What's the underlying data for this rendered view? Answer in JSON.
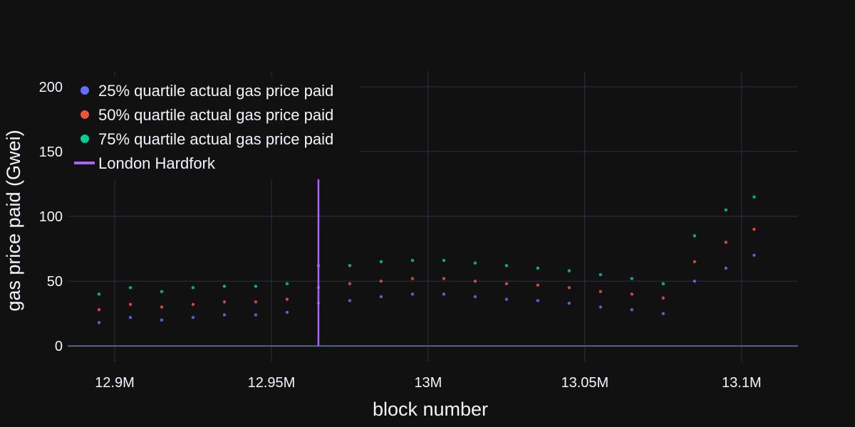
{
  "chart_data": {
    "type": "scatter",
    "title": "",
    "xlabel": "block number",
    "ylabel": "gas price paid (Gwei)",
    "xlim": [
      12885000,
      13118000
    ],
    "ylim": [
      -12,
      212
    ],
    "x_ticks": [
      {
        "value": 12900000,
        "label": "12.9M"
      },
      {
        "value": 12950000,
        "label": "12.95M"
      },
      {
        "value": 13000000,
        "label": "13M"
      },
      {
        "value": 13050000,
        "label": "13.05M"
      },
      {
        "value": 13100000,
        "label": "13.1M"
      }
    ],
    "y_ticks": [
      {
        "value": 0,
        "label": "0"
      },
      {
        "value": 50,
        "label": "50"
      },
      {
        "value": 100,
        "label": "100"
      },
      {
        "value": 150,
        "label": "150"
      },
      {
        "value": 200,
        "label": "200"
      }
    ],
    "grid": true,
    "legend_position": "top-left",
    "series": [
      {
        "name": "25% quartile actual gas price paid",
        "color": "#636efa",
        "x": [
          12895000,
          12905000,
          12915000,
          12925000,
          12935000,
          12945000,
          12955000,
          12965000,
          12975000,
          12985000,
          12995000,
          13005000,
          13015000,
          13025000,
          13035000,
          13045000,
          13055000,
          13065000,
          13075000,
          13085000,
          13095000,
          13104000
        ],
        "y": [
          18,
          22,
          20,
          22,
          24,
          24,
          26,
          33,
          35,
          38,
          40,
          40,
          38,
          36,
          35,
          33,
          30,
          28,
          25,
          50,
          60,
          70
        ]
      },
      {
        "name": "50% quartile actual gas price paid",
        "color": "#ef553b",
        "x": [
          12895000,
          12905000,
          12915000,
          12925000,
          12935000,
          12945000,
          12955000,
          12965000,
          12975000,
          12985000,
          12995000,
          13005000,
          13015000,
          13025000,
          13035000,
          13045000,
          13055000,
          13065000,
          13075000,
          13085000,
          13095000,
          13104000
        ],
        "y": [
          28,
          32,
          30,
          32,
          34,
          34,
          36,
          45,
          48,
          50,
          52,
          52,
          50,
          48,
          47,
          45,
          42,
          40,
          37,
          65,
          80,
          90
        ]
      },
      {
        "name": "75% quartile actual gas price paid",
        "color": "#00cc96",
        "x": [
          12895000,
          12905000,
          12915000,
          12925000,
          12935000,
          12945000,
          12955000,
          12965000,
          12975000,
          12985000,
          12995000,
          13005000,
          13015000,
          13025000,
          13035000,
          13045000,
          13055000,
          13065000,
          13075000,
          13085000,
          13095000,
          13104000
        ],
        "y": [
          40,
          45,
          42,
          45,
          46,
          46,
          48,
          62,
          62,
          65,
          66,
          66,
          64,
          62,
          60,
          58,
          55,
          52,
          48,
          85,
          105,
          115
        ]
      }
    ],
    "annotations": [
      {
        "name": "London Hardfork",
        "type": "vline",
        "x": 12965000,
        "y_range": [
          0,
          131
        ],
        "color": "#ab63fa"
      }
    ]
  }
}
